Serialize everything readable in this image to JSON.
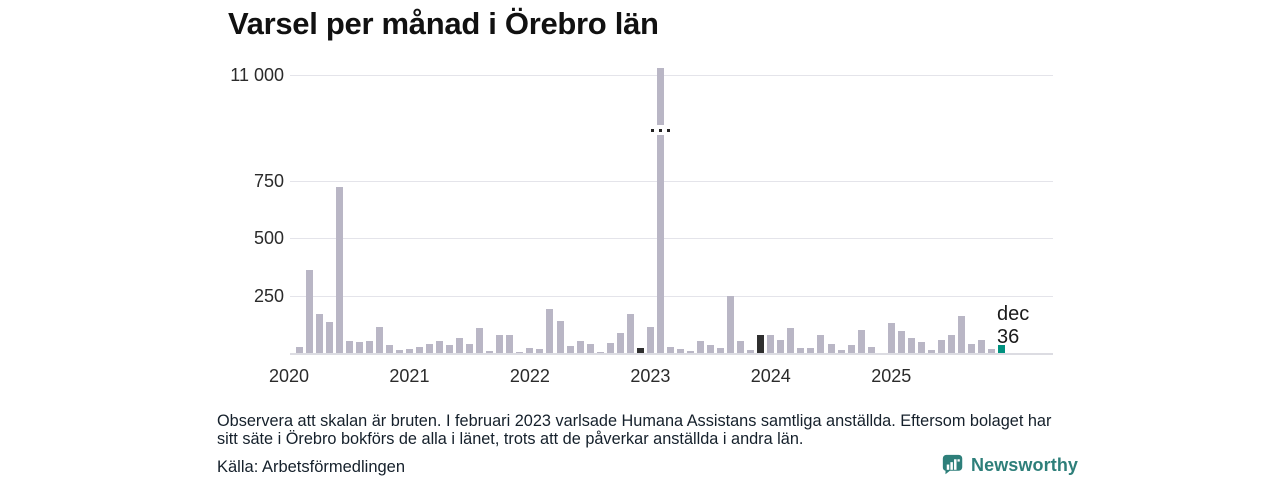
{
  "title": "Varsel per månad i Örebro län",
  "annotation": {
    "line1": "dec",
    "line2": "36"
  },
  "footnote": {
    "line1": "Observera att skalan är bruten. I februari 2023 varlsade Humana Assistans samtliga anställda. Eftersom bolaget har",
    "line2": "sitt säte i Örebro bokförs de alla i länet, trots att de påverkar anställda i andra län."
  },
  "source": "Källa: Arbetsförmedlingen",
  "branding": {
    "name": "Newsworthy",
    "icon": "newsworthy-bubble-bar-chart-icon",
    "color": "#2e7f7a"
  },
  "colors": {
    "bar_default": "#b9b6c5",
    "bar_december_highlight": "#2f2f2f",
    "bar_latest_month": "#00917f",
    "gridline": "#e4e4ea"
  },
  "chart_data": {
    "type": "bar",
    "title": "Varsel per månad i Örebro län",
    "x_tick_labels": [
      "2020",
      "2021",
      "2022",
      "2023",
      "2024",
      "2025"
    ],
    "y_tick_labels": [
      "11 000",
      "750",
      "500",
      "250"
    ],
    "y_tick_values": [
      11000,
      750,
      500,
      250
    ],
    "y_axis_broken": true,
    "break_note": "scale broken between 750 and 11 000",
    "legend": "none",
    "categories": [
      "jan 2020",
      "feb 2020",
      "mar 2020",
      "apr 2020",
      "maj 2020",
      "jun 2020",
      "jul 2020",
      "aug 2020",
      "sep 2020",
      "okt 2020",
      "nov 2020",
      "dec 2020",
      "jan 2021",
      "feb 2021",
      "mar 2021",
      "apr 2021",
      "maj 2021",
      "jun 2021",
      "jul 2021",
      "aug 2021",
      "sep 2021",
      "okt 2021",
      "nov 2021",
      "dec 2021",
      "jan 2022",
      "feb 2022",
      "mar 2022",
      "apr 2022",
      "maj 2022",
      "jun 2022",
      "jul 2022",
      "aug 2022",
      "sep 2022",
      "okt 2022",
      "nov 2022",
      "dec 2022",
      "jan 2023",
      "feb 2023",
      "mar 2023",
      "apr 2023",
      "maj 2023",
      "jun 2023",
      "jul 2023",
      "aug 2023",
      "sep 2023",
      "okt 2023",
      "nov 2023",
      "dec 2023",
      "jan 2024",
      "feb 2024",
      "mar 2024",
      "apr 2024",
      "maj 2024",
      "jun 2024",
      "jul 2024",
      "aug 2024",
      "sep 2024",
      "okt 2024",
      "nov 2024",
      "dec 2024",
      "jan 2025",
      "feb 2025",
      "mar 2025",
      "apr 2025",
      "maj 2025",
      "jun 2025",
      "jul 2025",
      "aug 2025",
      "sep 2025",
      "okt 2025",
      "nov 2025",
      "dec 2025"
    ],
    "values": [
      0,
      27,
      360,
      168,
      133,
      723,
      52,
      50,
      52,
      115,
      35,
      13,
      17,
      27,
      38,
      52,
      35,
      67,
      38,
      110,
      9,
      80,
      80,
      5,
      22,
      18,
      190,
      140,
      29,
      51,
      37,
      5,
      45,
      85,
      170,
      23,
      115,
      11000,
      26,
      19,
      9,
      53,
      34,
      23,
      250,
      53,
      12,
      78,
      78,
      56,
      107,
      20,
      23,
      78,
      38,
      13,
      35,
      100,
      28,
      0,
      129,
      95,
      64,
      50,
      12,
      56,
      78,
      160,
      38,
      56,
      16,
      36
    ],
    "bar_styles": {
      "35": "dark",
      "47": "dark",
      "71": "accent"
    },
    "broken_bar_index": 37,
    "annotated_bar": {
      "index": 71,
      "month_label": "dec",
      "value_label": "36"
    }
  }
}
